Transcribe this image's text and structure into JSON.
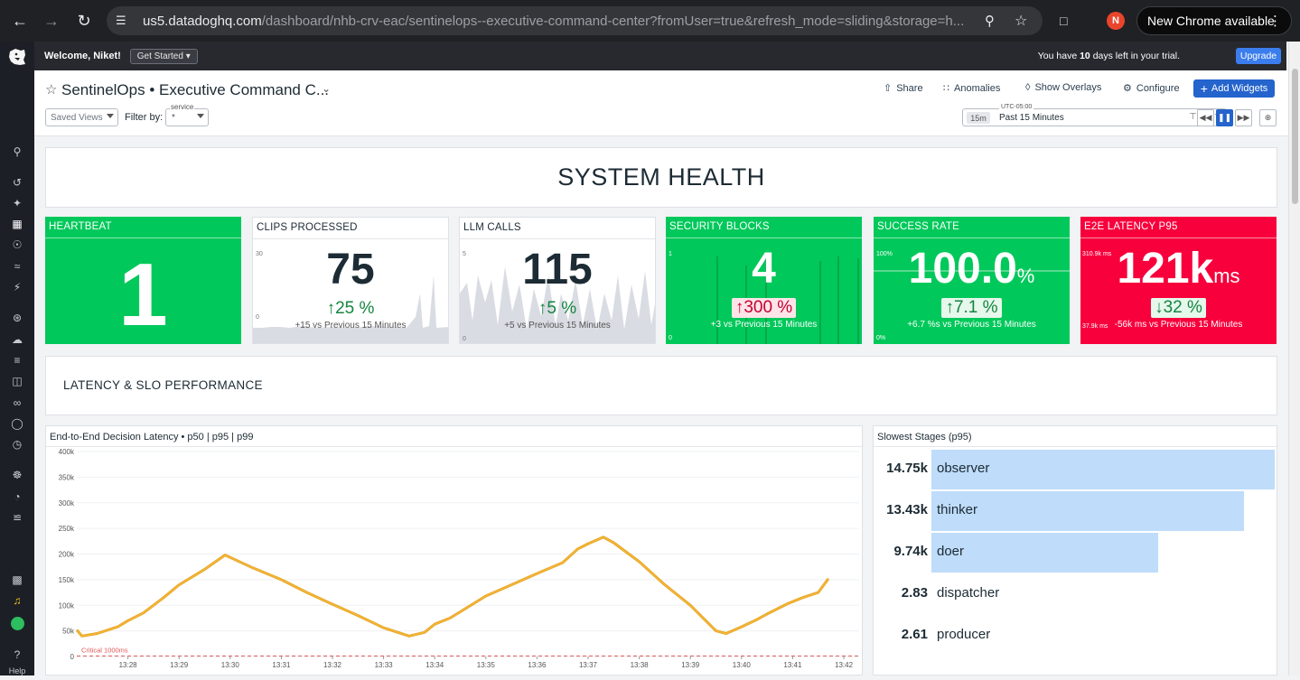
{
  "browser": {
    "url_host": "us5.datadoghq.com",
    "url_path": "/dashboard/nhb-crv-eac/sentinelops--executive-command-center?fromUser=true&refresh_mode=sliding&storage=h...",
    "profile_initial": "N",
    "new_chrome_label": "New Chrome available"
  },
  "topbar": {
    "welcome": "Welcome, Niket!",
    "get_started": "Get Started",
    "trial_prefix": "You have ",
    "trial_days": "10",
    "trial_suffix": " days left in your trial.",
    "upgrade": "Upgrade"
  },
  "leftnav": {
    "help": "Help"
  },
  "header": {
    "title": "SentinelOps • Executive Command C...",
    "share": "Share",
    "anomalies": "Anomalies",
    "show_overlays": "Show Overlays",
    "configure": "Configure",
    "add_widgets": "Add Widgets",
    "saved_views": "Saved Views",
    "filter_by": "Filter by:",
    "service_label": "service",
    "service_value": "*",
    "timezone": "UTC-05:00",
    "time_pill": "15m",
    "time_range": "Past 15 Minutes"
  },
  "system_health": {
    "title": "SYSTEM HEALTH"
  },
  "tiles": [
    {
      "title": "HEARTBEAT",
      "value": "1",
      "color": "#00c85a"
    },
    {
      "title": "CLIPS PROCESSED",
      "value": "75",
      "change": "25 %",
      "direction": "up",
      "sub": "+15 vs Previous 15 Minutes",
      "axis_top": "30",
      "axis_bottom": "0"
    },
    {
      "title": "LLM CALLS",
      "value": "115",
      "change": "5 %",
      "direction": "up",
      "sub": "+5 vs Previous 15 Minutes",
      "axis_top": "5",
      "axis_bottom": "0"
    },
    {
      "title": "SECURITY BLOCKS",
      "value": "4",
      "change": "300 %",
      "direction": "up",
      "sub": "+3 vs Previous 15 Minutes",
      "axis_top": "1",
      "axis_bottom": "0",
      "color": "#00c85a"
    },
    {
      "title": "SUCCESS RATE",
      "value": "100.0",
      "unit": "%",
      "change": "7.1 %",
      "direction": "up",
      "sub": "+6.7 %s vs Previous 15 Minutes",
      "axis_top": "100%",
      "axis_bottom": "0%",
      "color": "#00c85a"
    },
    {
      "title": "E2E LATENCY P95",
      "value": "121k",
      "unit": "ms",
      "change": "32 %",
      "direction": "down",
      "sub": "-56k ms vs Previous 15 Minutes",
      "axis_top": "310.9k ms",
      "axis_bottom": "37.9k ms",
      "color": "#f7003c"
    }
  ],
  "latency_section": {
    "title": "LATENCY & SLO PERFORMANCE"
  },
  "chart_data": [
    {
      "type": "line",
      "title": "End-to-End Decision Latency • p50 | p95 | p99",
      "y_ticks": [
        "400k",
        "350k",
        "300k",
        "250k",
        "200k",
        "150k",
        "100k",
        "50k",
        "0"
      ],
      "ylim": [
        0,
        400000
      ],
      "x_ticks": [
        "13:28",
        "13:29",
        "13:30",
        "13:31",
        "13:32",
        "13:33",
        "13:34",
        "13:35",
        "13:36",
        "13:37",
        "13:38",
        "13:39",
        "13:40",
        "13:41",
        "13:42"
      ],
      "threshold_label": "Critical 1000ms",
      "threshold_value": 1000,
      "series": [
        {
          "color": "#f5b536",
          "x": [
            27.0,
            27.1,
            27.4,
            27.8,
            28.0,
            28.3,
            28.7,
            29.0,
            29.5,
            29.9,
            30.4,
            31.0,
            31.5,
            32.0,
            32.5,
            33.0,
            33.5,
            33.8,
            34.0,
            34.3,
            35.0,
            35.5,
            36.0,
            36.5,
            36.8,
            37.0,
            37.3,
            37.5,
            38.0,
            38.5,
            39.0,
            39.5,
            39.7,
            40.0,
            40.3,
            40.5,
            40.9,
            41.2,
            41.5,
            41.7
          ],
          "y": [
            52000,
            40000,
            45000,
            58000,
            70000,
            85000,
            115000,
            140000,
            170000,
            198000,
            175000,
            150000,
            125000,
            102000,
            80000,
            56000,
            40000,
            47000,
            63000,
            75000,
            118000,
            140000,
            162000,
            183000,
            210000,
            220000,
            233000,
            222000,
            185000,
            140000,
            100000,
            50000,
            45000,
            58000,
            72000,
            83000,
            103000,
            115000,
            125000,
            152000
          ]
        }
      ]
    },
    {
      "type": "bar",
      "title": "Slowest Stages (p95)",
      "categories": [
        "observer",
        "thinker",
        "doer",
        "dispatcher",
        "producer"
      ],
      "values": [
        14.75,
        13.43,
        9.74,
        2.83,
        2.61
      ],
      "labels": [
        "14.75k",
        "13.43k",
        "9.74k",
        "2.83",
        "2.61"
      ]
    }
  ]
}
